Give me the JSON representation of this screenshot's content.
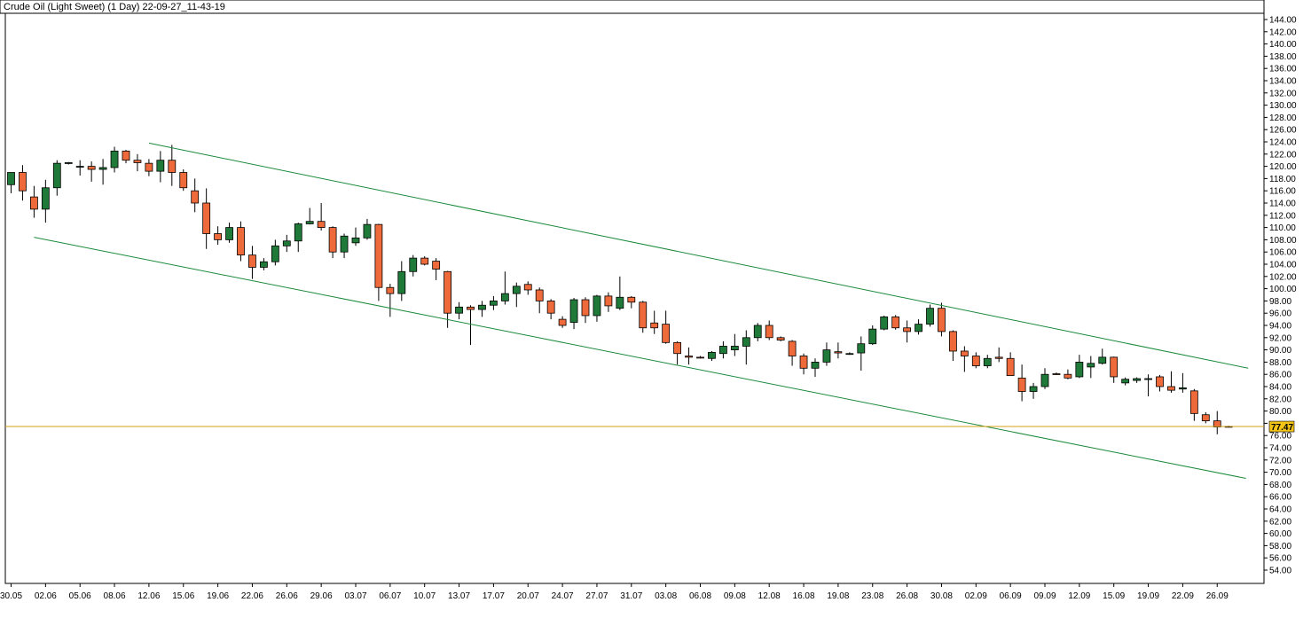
{
  "chart_data": {
    "type": "candlestick",
    "title": "Crude Oil (Light Sweet) (1 Day) 22-09-27_11-43-19",
    "last_price_label": "77.47",
    "colors": {
      "up": "#1f7a3a",
      "down": "#ef6a3a",
      "channel": "#1a8a3a",
      "last_price_line": "#d4a017",
      "wick": "#000000"
    },
    "y_axis": {
      "min": 53,
      "max": 145,
      "ticks": [
        "54.00",
        "56.00",
        "58.00",
        "60.00",
        "62.00",
        "64.00",
        "66.00",
        "68.00",
        "70.00",
        "72.00",
        "74.00",
        "76.00",
        "78.00",
        "80.00",
        "82.00",
        "84.00",
        "86.00",
        "88.00",
        "90.00",
        "92.00",
        "94.00",
        "96.00",
        "98.00",
        "100.00",
        "102.00",
        "104.00",
        "106.00",
        "108.00",
        "110.00",
        "112.00",
        "114.00",
        "116.00",
        "118.00",
        "120.00",
        "122.00",
        "124.00",
        "126.00",
        "128.00",
        "130.00",
        "132.00",
        "134.00",
        "136.00",
        "138.00",
        "140.00",
        "142.00",
        "144.00"
      ]
    },
    "x_axis": {
      "tick_labels": [
        {
          "label": "30.05",
          "index": 0
        },
        {
          "label": "02.06",
          "index": 3
        },
        {
          "label": "05.06",
          "index": 6
        },
        {
          "label": "08.06",
          "index": 9
        },
        {
          "label": "12.06",
          "index": 12
        },
        {
          "label": "15.06",
          "index": 15
        },
        {
          "label": "19.06",
          "index": 18
        },
        {
          "label": "22.06",
          "index": 21
        },
        {
          "label": "26.06",
          "index": 24
        },
        {
          "label": "29.06",
          "index": 27
        },
        {
          "label": "03.07",
          "index": 30
        },
        {
          "label": "06.07",
          "index": 33
        },
        {
          "label": "10.07",
          "index": 36
        },
        {
          "label": "13.07",
          "index": 39
        },
        {
          "label": "17.07",
          "index": 42
        },
        {
          "label": "20.07",
          "index": 45
        },
        {
          "label": "24.07",
          "index": 48
        },
        {
          "label": "27.07",
          "index": 51
        },
        {
          "label": "31.07",
          "index": 54
        },
        {
          "label": "03.08",
          "index": 57
        },
        {
          "label": "06.08",
          "index": 60
        },
        {
          "label": "09.08",
          "index": 63
        },
        {
          "label": "12.08",
          "index": 66
        },
        {
          "label": "16.08",
          "index": 69
        },
        {
          "label": "19.08",
          "index": 72
        },
        {
          "label": "23.08",
          "index": 75
        },
        {
          "label": "26.08",
          "index": 78
        },
        {
          "label": "30.08",
          "index": 81
        },
        {
          "label": "02.09",
          "index": 84
        },
        {
          "label": "06.09",
          "index": 87
        },
        {
          "label": "09.09",
          "index": 90
        },
        {
          "label": "12.09",
          "index": 93
        },
        {
          "label": "15.09",
          "index": 96
        },
        {
          "label": "19.09",
          "index": 99
        },
        {
          "label": "22.09",
          "index": 102
        },
        {
          "label": "26.09",
          "index": 105
        }
      ]
    },
    "candles": [
      {
        "o": 117.0,
        "h": 118.5,
        "l": 115.6,
        "c": 119.0
      },
      {
        "o": 119.0,
        "h": 120.2,
        "l": 114.4,
        "c": 116.0
      },
      {
        "o": 115.0,
        "h": 116.8,
        "l": 111.6,
        "c": 113.0
      },
      {
        "o": 113.0,
        "h": 117.8,
        "l": 110.8,
        "c": 116.5
      },
      {
        "o": 116.5,
        "h": 121.0,
        "l": 115.2,
        "c": 120.5
      },
      {
        "o": 120.5,
        "h": 120.7,
        "l": 120.3,
        "c": 120.6
      },
      {
        "o": 120.0,
        "h": 121.0,
        "l": 118.5,
        "c": 120.0
      },
      {
        "o": 120.0,
        "h": 120.8,
        "l": 117.5,
        "c": 119.5
      },
      {
        "o": 119.5,
        "h": 121.2,
        "l": 117.0,
        "c": 119.8
      },
      {
        "o": 119.8,
        "h": 123.2,
        "l": 119.0,
        "c": 122.5
      },
      {
        "o": 122.5,
        "h": 122.7,
        "l": 120.5,
        "c": 121.0
      },
      {
        "o": 121.0,
        "h": 122.0,
        "l": 119.2,
        "c": 120.6
      },
      {
        "o": 120.5,
        "h": 121.2,
        "l": 118.4,
        "c": 119.2
      },
      {
        "o": 119.2,
        "h": 122.5,
        "l": 117.4,
        "c": 121.0
      },
      {
        "o": 121.0,
        "h": 123.5,
        "l": 116.8,
        "c": 119.0
      },
      {
        "o": 119.0,
        "h": 119.5,
        "l": 116.0,
        "c": 116.5
      },
      {
        "o": 116.0,
        "h": 118.0,
        "l": 112.5,
        "c": 114.0
      },
      {
        "o": 114.0,
        "h": 116.4,
        "l": 106.5,
        "c": 109.0
      },
      {
        "o": 109.0,
        "h": 110.2,
        "l": 107.2,
        "c": 108.0
      },
      {
        "o": 108.0,
        "h": 110.8,
        "l": 107.5,
        "c": 110.0
      },
      {
        "o": 110.0,
        "h": 111.0,
        "l": 104.5,
        "c": 105.5
      },
      {
        "o": 105.5,
        "h": 107.0,
        "l": 101.6,
        "c": 103.5
      },
      {
        "o": 103.5,
        "h": 105.0,
        "l": 103.0,
        "c": 104.4
      },
      {
        "o": 104.4,
        "h": 108.0,
        "l": 103.8,
        "c": 107.0
      },
      {
        "o": 107.0,
        "h": 108.8,
        "l": 106.0,
        "c": 107.8
      },
      {
        "o": 107.8,
        "h": 110.8,
        "l": 106.0,
        "c": 110.6
      },
      {
        "o": 110.6,
        "h": 113.2,
        "l": 110.5,
        "c": 111.0
      },
      {
        "o": 111.0,
        "h": 114.0,
        "l": 109.5,
        "c": 110.0
      },
      {
        "o": 110.0,
        "h": 110.2,
        "l": 105.0,
        "c": 106.0
      },
      {
        "o": 106.0,
        "h": 109.0,
        "l": 105.0,
        "c": 108.6
      },
      {
        "o": 107.5,
        "h": 110.0,
        "l": 107.0,
        "c": 108.3
      },
      {
        "o": 108.3,
        "h": 111.4,
        "l": 108.0,
        "c": 110.5
      },
      {
        "o": 110.5,
        "h": 110.6,
        "l": 98.0,
        "c": 100.2
      },
      {
        "o": 100.2,
        "h": 100.8,
        "l": 95.4,
        "c": 99.2
      },
      {
        "o": 99.2,
        "h": 104.5,
        "l": 98.0,
        "c": 102.8
      },
      {
        "o": 102.8,
        "h": 105.5,
        "l": 102.0,
        "c": 105.0
      },
      {
        "o": 105.0,
        "h": 105.3,
        "l": 103.8,
        "c": 104.0
      },
      {
        "o": 104.5,
        "h": 105.0,
        "l": 101.4,
        "c": 103.2
      },
      {
        "o": 102.8,
        "h": 102.9,
        "l": 93.6,
        "c": 96.0
      },
      {
        "o": 96.0,
        "h": 97.8,
        "l": 95.0,
        "c": 97.0
      },
      {
        "o": 97.0,
        "h": 97.3,
        "l": 90.8,
        "c": 96.6
      },
      {
        "o": 96.6,
        "h": 98.0,
        "l": 95.4,
        "c": 97.3
      },
      {
        "o": 97.3,
        "h": 98.8,
        "l": 96.5,
        "c": 98.0
      },
      {
        "o": 98.0,
        "h": 102.8,
        "l": 97.4,
        "c": 99.2
      },
      {
        "o": 99.2,
        "h": 101.0,
        "l": 97.0,
        "c": 100.4
      },
      {
        "o": 100.7,
        "h": 101.2,
        "l": 99.0,
        "c": 99.8
      },
      {
        "o": 99.8,
        "h": 100.2,
        "l": 96.0,
        "c": 98.0
      },
      {
        "o": 98.0,
        "h": 98.3,
        "l": 95.0,
        "c": 96.0
      },
      {
        "o": 95.0,
        "h": 95.5,
        "l": 93.6,
        "c": 94.0
      },
      {
        "o": 94.5,
        "h": 98.5,
        "l": 93.4,
        "c": 98.2
      },
      {
        "o": 98.2,
        "h": 98.6,
        "l": 94.4,
        "c": 95.6
      },
      {
        "o": 95.6,
        "h": 99.0,
        "l": 94.6,
        "c": 98.8
      },
      {
        "o": 98.8,
        "h": 99.4,
        "l": 96.2,
        "c": 97.2
      },
      {
        "o": 96.8,
        "h": 102.0,
        "l": 96.5,
        "c": 98.6
      },
      {
        "o": 98.6,
        "h": 98.8,
        "l": 96.8,
        "c": 97.8
      },
      {
        "o": 97.8,
        "h": 98.0,
        "l": 92.8,
        "c": 93.6
      },
      {
        "o": 94.4,
        "h": 96.4,
        "l": 92.6,
        "c": 93.6
      },
      {
        "o": 94.2,
        "h": 96.4,
        "l": 91.0,
        "c": 91.2
      },
      {
        "o": 91.2,
        "h": 91.4,
        "l": 87.6,
        "c": 89.4
      },
      {
        "o": 89.0,
        "h": 90.4,
        "l": 87.6,
        "c": 88.8
      },
      {
        "o": 88.8,
        "h": 89.0,
        "l": 88.6,
        "c": 88.7
      },
      {
        "o": 88.6,
        "h": 89.8,
        "l": 88.2,
        "c": 89.6
      },
      {
        "o": 89.4,
        "h": 91.4,
        "l": 88.6,
        "c": 90.6
      },
      {
        "o": 90.0,
        "h": 92.6,
        "l": 89.0,
        "c": 90.6
      },
      {
        "o": 90.6,
        "h": 93.2,
        "l": 87.6,
        "c": 92.0
      },
      {
        "o": 92.0,
        "h": 94.4,
        "l": 91.4,
        "c": 94.0
      },
      {
        "o": 94.0,
        "h": 94.8,
        "l": 91.6,
        "c": 92.0
      },
      {
        "o": 92.0,
        "h": 92.2,
        "l": 91.4,
        "c": 91.6
      },
      {
        "o": 91.4,
        "h": 91.6,
        "l": 87.4,
        "c": 89.0
      },
      {
        "o": 89.0,
        "h": 89.4,
        "l": 86.0,
        "c": 87.0
      },
      {
        "o": 87.0,
        "h": 88.6,
        "l": 85.6,
        "c": 88.0
      },
      {
        "o": 88.0,
        "h": 91.2,
        "l": 87.4,
        "c": 90.0
      },
      {
        "o": 89.7,
        "h": 91.2,
        "l": 88.6,
        "c": 89.5
      },
      {
        "o": 89.4,
        "h": 89.6,
        "l": 89.2,
        "c": 89.4
      },
      {
        "o": 89.5,
        "h": 92.2,
        "l": 86.6,
        "c": 91.0
      },
      {
        "o": 91.0,
        "h": 94.0,
        "l": 90.8,
        "c": 93.4
      },
      {
        "o": 93.4,
        "h": 95.6,
        "l": 93.2,
        "c": 95.4
      },
      {
        "o": 95.4,
        "h": 95.7,
        "l": 93.3,
        "c": 93.6
      },
      {
        "o": 93.6,
        "h": 94.8,
        "l": 91.2,
        "c": 93.0
      },
      {
        "o": 93.0,
        "h": 95.0,
        "l": 92.5,
        "c": 94.2
      },
      {
        "o": 94.2,
        "h": 97.4,
        "l": 93.8,
        "c": 96.8
      },
      {
        "o": 96.8,
        "h": 97.7,
        "l": 92.2,
        "c": 93.0
      },
      {
        "o": 93.0,
        "h": 93.2,
        "l": 88.2,
        "c": 89.8
      },
      {
        "o": 89.8,
        "h": 90.6,
        "l": 86.4,
        "c": 89.0
      },
      {
        "o": 89.0,
        "h": 89.6,
        "l": 87.0,
        "c": 87.4
      },
      {
        "o": 87.4,
        "h": 89.2,
        "l": 87.0,
        "c": 88.6
      },
      {
        "o": 88.8,
        "h": 90.4,
        "l": 88.0,
        "c": 88.6
      },
      {
        "o": 88.6,
        "h": 89.6,
        "l": 86.0,
        "c": 85.8
      },
      {
        "o": 85.4,
        "h": 87.6,
        "l": 81.6,
        "c": 83.2
      },
      {
        "o": 83.2,
        "h": 84.6,
        "l": 82.0,
        "c": 84.0
      },
      {
        "o": 84.0,
        "h": 87.0,
        "l": 83.6,
        "c": 86.0
      },
      {
        "o": 86.1,
        "h": 86.3,
        "l": 85.9,
        "c": 86.0
      },
      {
        "o": 86.0,
        "h": 86.8,
        "l": 85.2,
        "c": 85.4
      },
      {
        "o": 85.6,
        "h": 89.2,
        "l": 85.4,
        "c": 88.0
      },
      {
        "o": 87.2,
        "h": 89.0,
        "l": 85.4,
        "c": 87.8
      },
      {
        "o": 87.8,
        "h": 90.2,
        "l": 87.6,
        "c": 88.8
      },
      {
        "o": 88.8,
        "h": 88.9,
        "l": 84.6,
        "c": 85.6
      },
      {
        "o": 84.6,
        "h": 85.5,
        "l": 84.2,
        "c": 85.2
      },
      {
        "o": 85.0,
        "h": 85.5,
        "l": 84.6,
        "c": 85.3
      },
      {
        "o": 85.3,
        "h": 86.0,
        "l": 82.4,
        "c": 85.3
      },
      {
        "o": 85.6,
        "h": 85.9,
        "l": 83.2,
        "c": 84.0
      },
      {
        "o": 84.0,
        "h": 86.5,
        "l": 83.0,
        "c": 83.4
      },
      {
        "o": 83.6,
        "h": 86.2,
        "l": 83.0,
        "c": 83.8
      },
      {
        "o": 83.3,
        "h": 83.6,
        "l": 78.4,
        "c": 79.6
      },
      {
        "o": 79.4,
        "h": 79.8,
        "l": 78.0,
        "c": 78.4
      },
      {
        "o": 78.4,
        "h": 80.0,
        "l": 76.2,
        "c": 77.4
      },
      {
        "o": 77.5,
        "h": 77.6,
        "l": 77.3,
        "c": 77.47
      }
    ],
    "channel_lines": [
      {
        "x1": 12,
        "y1": 123.8,
        "x2": 107.7,
        "y2": 87.0
      },
      {
        "x1": 2,
        "y1": 108.4,
        "x2": 107.5,
        "y2": 69.0
      }
    ],
    "last_price": 77.47
  }
}
